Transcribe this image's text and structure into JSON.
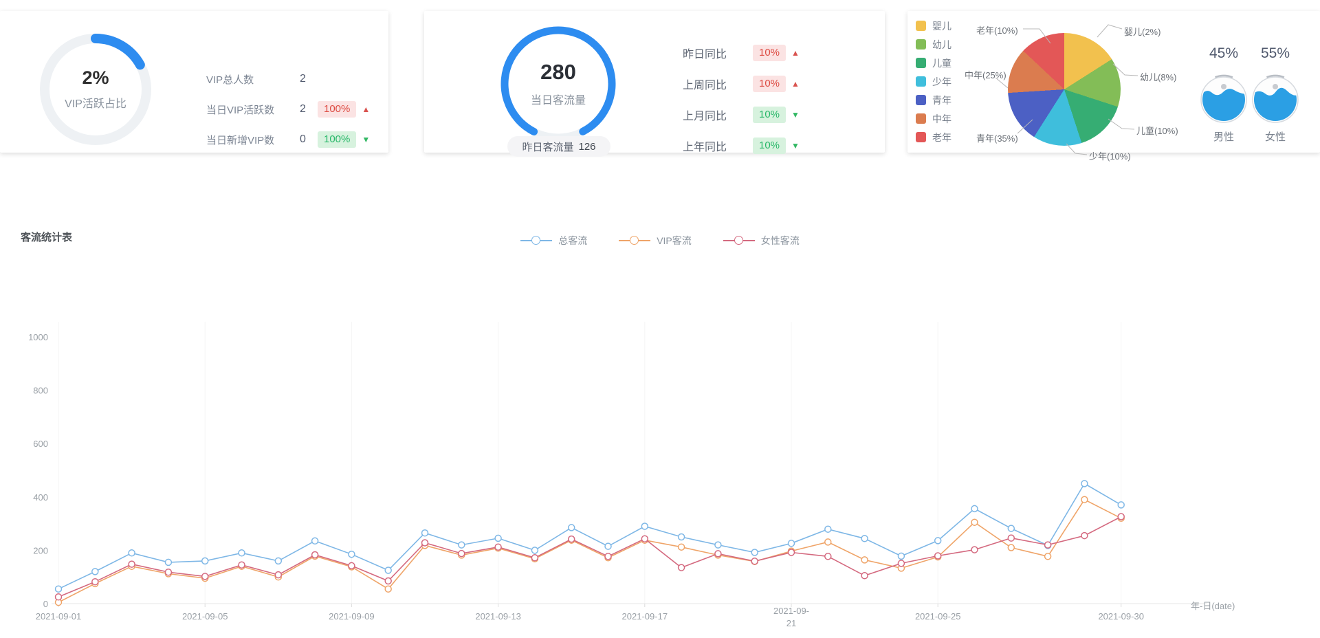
{
  "cards": {
    "vip": {
      "center_value": "2%",
      "center_caption": "VIP活跃占比",
      "rows": [
        {
          "label": "VIP总人数",
          "value": "2"
        },
        {
          "label": "当日VIP活跃数",
          "value": "2",
          "badge": "100%",
          "tone": "red",
          "arrow": "▲"
        },
        {
          "label": "当日新增VIP数",
          "value": "0",
          "badge": "100%",
          "tone": "green",
          "arrow": "▼"
        }
      ]
    },
    "traffic": {
      "center_value": "280",
      "center_caption": "当日客流量",
      "pill_label": "昨日客流量",
      "pill_value": "126",
      "rows": [
        {
          "label": "昨日同比",
          "badge": "10%",
          "tone": "red",
          "arrow": "▲"
        },
        {
          "label": "上周同比",
          "badge": "10%",
          "tone": "red",
          "arrow": "▲"
        },
        {
          "label": "上月同比",
          "badge": "10%",
          "tone": "green",
          "arrow": "▼"
        },
        {
          "label": "上年同比",
          "badge": "10%",
          "tone": "green",
          "arrow": "▼"
        }
      ]
    },
    "demographics": {
      "legend": [
        {
          "label": "婴儿",
          "color": "#F2C14E"
        },
        {
          "label": "幼儿",
          "color": "#83BD57"
        },
        {
          "label": "儿童",
          "color": "#36AD73"
        },
        {
          "label": "少年",
          "color": "#3FBEDC"
        },
        {
          "label": "青年",
          "color": "#4C60C4"
        },
        {
          "label": "中年",
          "color": "#DB7C4F"
        },
        {
          "label": "老年",
          "color": "#E35757"
        }
      ],
      "gender": [
        {
          "percent": "45%",
          "label": "男性",
          "color": "#3D9EE8"
        },
        {
          "percent": "55%",
          "label": "女性",
          "color": "#E25067"
        }
      ]
    }
  },
  "flow": {
    "title": "客流统计表"
  },
  "chart_data": [
    {
      "type": "donut",
      "title": "VIP活跃占比",
      "value_pct": 2,
      "accent_color": "#2d8cf0"
    },
    {
      "type": "gauge",
      "title": "当日客流量",
      "value": 280,
      "footer_label": "昨日客流量",
      "footer_value": 126,
      "accent_color": "#2d8cf0"
    },
    {
      "type": "pie",
      "labels": [
        "婴儿(2%)",
        "幼儿(8%)",
        "儿童(10%)",
        "少年(10%)",
        "青年(35%)",
        "中年(25%)",
        "老年(10%)"
      ],
      "categories": [
        "婴儿",
        "幼儿",
        "儿童",
        "少年",
        "青年",
        "中年",
        "老年"
      ],
      "values_pct": [
        2,
        8,
        10,
        10,
        35,
        25,
        10
      ],
      "display_fractions_pct": [
        16,
        14,
        15,
        14,
        15,
        13,
        13
      ],
      "colors": [
        "#F2C14E",
        "#83BD57",
        "#36AD73",
        "#3FBEDC",
        "#4C60C4",
        "#DB7C4F",
        "#E35757"
      ],
      "legend_position": "left"
    },
    {
      "type": "liquid-gauge",
      "items": [
        {
          "label": "男性",
          "pct": 45
        },
        {
          "label": "女性",
          "pct": 55
        }
      ],
      "water_color": "#2B9FE4"
    },
    {
      "type": "line",
      "title": "客流统计表",
      "x_axis_name": "年-日(date)",
      "ylim": [
        0,
        1000
      ],
      "yticks": [
        0,
        200,
        400,
        600,
        800,
        1000
      ],
      "grid": "faint-vertical",
      "legend_position": "top-center",
      "x": [
        "2021-09-01",
        "2021-09-02",
        "2021-09-03",
        "2021-09-04",
        "2021-09-05",
        "2021-09-06",
        "2021-09-07",
        "2021-09-08",
        "2021-09-09",
        "2021-09-10",
        "2021-09-11",
        "2021-09-12",
        "2021-09-13",
        "2021-09-14",
        "2021-09-15",
        "2021-09-16",
        "2021-09-17",
        "2021-09-18",
        "2021-09-19",
        "2021-09-20",
        "2021-09-21",
        "2021-09-22",
        "2021-09-23",
        "2021-09-24",
        "2021-09-25",
        "2021-09-26",
        "2021-09-27",
        "2021-09-28",
        "2021-09-29",
        "2021-09-30"
      ],
      "series": [
        {
          "name": "总客流",
          "color": "#7EB7E6",
          "values": [
            55,
            120,
            190,
            155,
            160,
            190,
            160,
            235,
            185,
            125,
            265,
            220,
            245,
            200,
            285,
            215,
            290,
            250,
            220,
            192,
            226,
            279,
            244,
            178,
            236,
            356,
            282,
            218,
            450,
            370
          ]
        },
        {
          "name": "VIP客流",
          "color": "#EFA468",
          "values": [
            5,
            75,
            140,
            112,
            95,
            140,
            100,
            178,
            138,
            55,
            218,
            182,
            208,
            168,
            238,
            172,
            238,
            212,
            182,
            158,
            197,
            231,
            164,
            133,
            175,
            305,
            210,
            177,
            390,
            320
          ]
        },
        {
          "name": "女性客流",
          "color": "#D4697F",
          "values": [
            25,
            82,
            148,
            118,
            102,
            145,
            108,
            183,
            142,
            85,
            228,
            188,
            212,
            172,
            242,
            177,
            243,
            135,
            187,
            159,
            192,
            177,
            105,
            151,
            179,
            202,
            246,
            220,
            255,
            326
          ]
        }
      ]
    }
  ]
}
